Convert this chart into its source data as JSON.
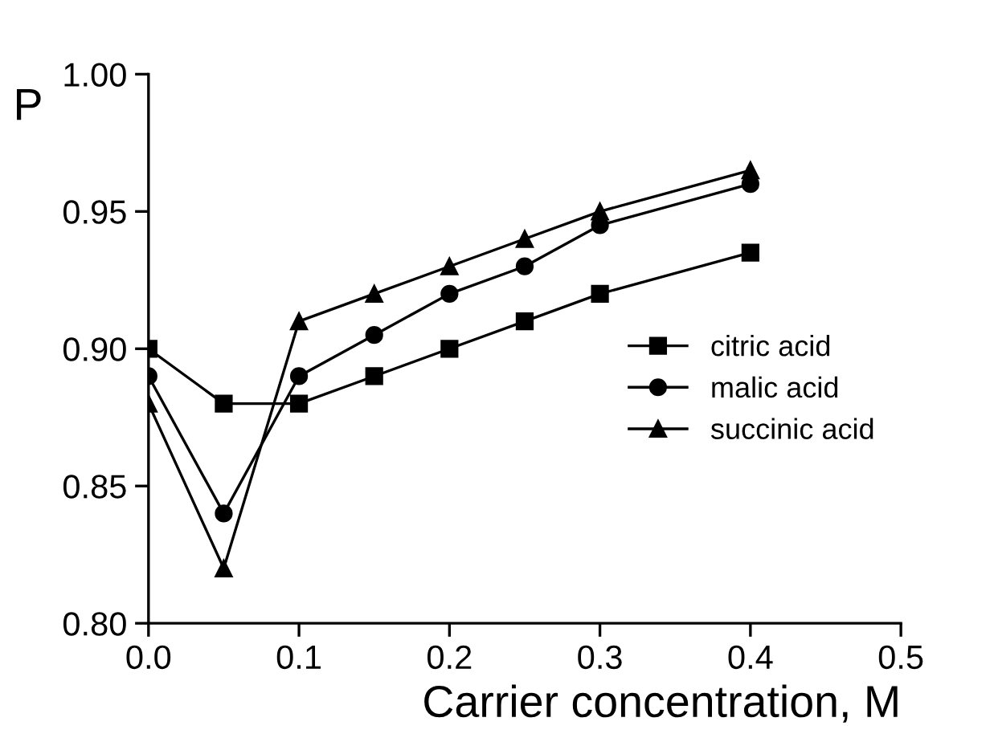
{
  "chart_data": {
    "type": "line",
    "xlabel": "Carrier concentration, M",
    "ylabel": "P",
    "x": [
      0.0,
      0.05,
      0.1,
      0.15,
      0.2,
      0.25,
      0.3,
      0.4
    ],
    "series": [
      {
        "name": "citric acid",
        "color": "#000000",
        "marker": "square",
        "values": [
          0.9,
          0.88,
          0.88,
          0.89,
          0.9,
          0.91,
          0.92,
          0.935
        ]
      },
      {
        "name": "malic acid",
        "color": "#000000",
        "marker": "circle",
        "values": [
          0.89,
          0.84,
          0.89,
          0.905,
          0.92,
          0.93,
          0.945,
          0.96
        ]
      },
      {
        "name": "succinic acid",
        "color": "#000000",
        "marker": "triangle",
        "values": [
          0.88,
          0.82,
          0.91,
          0.92,
          0.93,
          0.94,
          0.95,
          0.965
        ]
      }
    ],
    "xlim": [
      0.0,
      0.5
    ],
    "xticks": [
      {
        "value": 0.0,
        "label": "0.0"
      },
      0.1,
      0.2,
      0.3,
      0.4,
      0.5
    ],
    "ylim": [
      0.8,
      1.0
    ],
    "yticks": [
      {
        "value": 0.8,
        "label": "0.80"
      },
      0.85,
      {
        "value": 0.9,
        "label": "0.90"
      },
      0.95,
      {
        "value": 1.0,
        "label": "1.00"
      }
    ],
    "legend": "center right",
    "grid": false,
    "line_style": "solid"
  }
}
